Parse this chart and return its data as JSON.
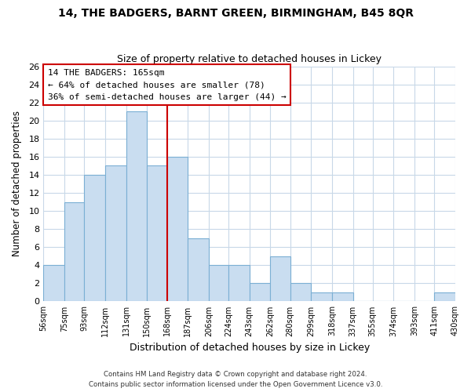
{
  "title": "14, THE BADGERS, BARNT GREEN, BIRMINGHAM, B45 8QR",
  "subtitle": "Size of property relative to detached houses in Lickey",
  "xlabel": "Distribution of detached houses by size in Lickey",
  "ylabel": "Number of detached properties",
  "bar_color": "#c9ddf0",
  "bar_edge_color": "#7bafd4",
  "highlight_line_color": "#cc0000",
  "bin_edges": [
    56,
    75,
    93,
    112,
    131,
    150,
    168,
    187,
    206,
    224,
    243,
    262,
    280,
    299,
    318,
    337,
    355,
    374,
    393,
    411,
    430
  ],
  "bin_labels": [
    "56sqm",
    "75sqm",
    "93sqm",
    "112sqm",
    "131sqm",
    "150sqm",
    "168sqm",
    "187sqm",
    "206sqm",
    "224sqm",
    "243sqm",
    "262sqm",
    "280sqm",
    "299sqm",
    "318sqm",
    "337sqm",
    "355sqm",
    "374sqm",
    "393sqm",
    "411sqm",
    "430sqm"
  ],
  "counts": [
    4,
    11,
    14,
    15,
    21,
    15,
    16,
    7,
    4,
    4,
    2,
    5,
    2,
    1,
    1,
    0,
    0,
    0,
    0,
    1
  ],
  "ylim": [
    0,
    26
  ],
  "yticks": [
    0,
    2,
    4,
    6,
    8,
    10,
    12,
    14,
    16,
    18,
    20,
    22,
    24,
    26
  ],
  "annotation_title": "14 THE BADGERS: 165sqm",
  "annotation_line1": "← 64% of detached houses are smaller (78)",
  "annotation_line2": "36% of semi-detached houses are larger (44) →",
  "background_color": "#ffffff",
  "grid_color": "#c8d8e8",
  "footer_line1": "Contains HM Land Registry data © Crown copyright and database right 2024.",
  "footer_line2": "Contains public sector information licensed under the Open Government Licence v3.0."
}
